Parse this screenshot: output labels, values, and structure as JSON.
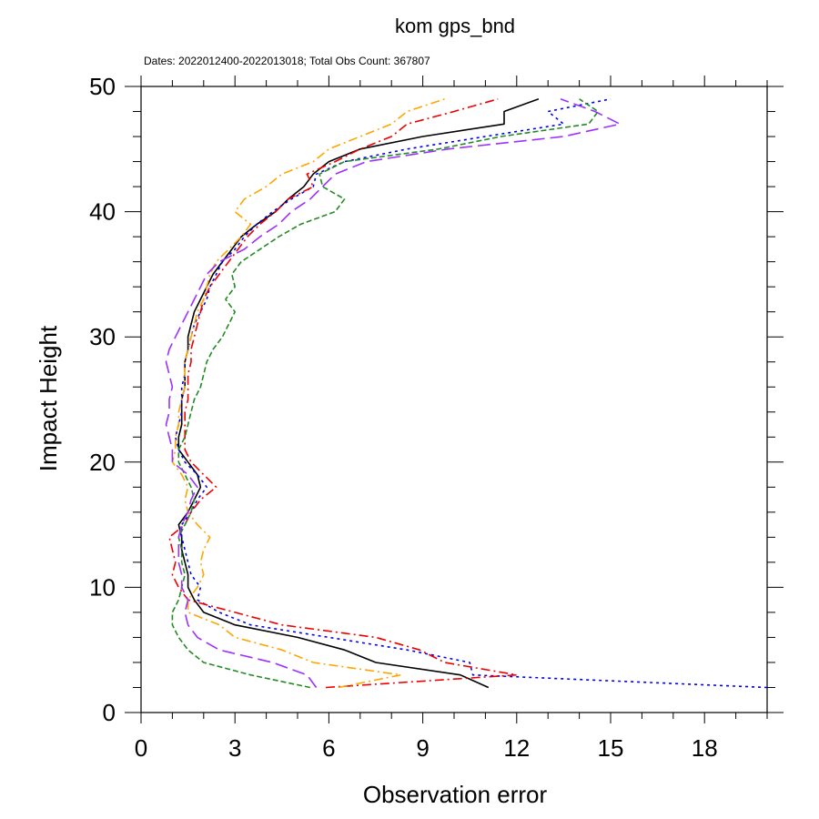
{
  "chart_data": {
    "type": "line",
    "title": "kom gps_bnd",
    "subtitle": "Dates: 2022012400-2022013018; Total Obs Count: 367807",
    "xlabel": "Observation error",
    "ylabel": "Impact Height",
    "xlim": [
      0,
      20
    ],
    "ylim": [
      0,
      50
    ],
    "xticks": [
      "0",
      "3",
      "6",
      "9",
      "12",
      "15",
      "18"
    ],
    "yticks": [
      "0",
      "10",
      "20",
      "30",
      "40",
      "50"
    ],
    "legend": "none",
    "series": [
      {
        "color": "#000000",
        "dash": "solid",
        "points": [
          [
            11.1,
            2
          ],
          [
            10.2,
            3
          ],
          [
            7.5,
            4
          ],
          [
            6.5,
            5
          ],
          [
            5.0,
            6
          ],
          [
            3.0,
            7
          ],
          [
            2.0,
            8
          ],
          [
            1.7,
            9
          ],
          [
            1.5,
            10
          ],
          [
            1.5,
            11
          ],
          [
            1.4,
            12
          ],
          [
            1.3,
            13
          ],
          [
            1.3,
            14
          ],
          [
            1.2,
            15
          ],
          [
            1.5,
            16
          ],
          [
            1.7,
            17
          ],
          [
            1.9,
            18
          ],
          [
            1.8,
            19
          ],
          [
            1.5,
            20
          ],
          [
            1.2,
            21
          ],
          [
            1.2,
            22
          ],
          [
            1.3,
            23
          ],
          [
            1.3,
            24
          ],
          [
            1.3,
            25
          ],
          [
            1.4,
            26
          ],
          [
            1.4,
            27
          ],
          [
            1.4,
            28
          ],
          [
            1.5,
            29
          ],
          [
            1.5,
            30
          ],
          [
            1.6,
            31
          ],
          [
            1.7,
            32
          ],
          [
            1.9,
            33
          ],
          [
            2.1,
            34
          ],
          [
            2.3,
            35
          ],
          [
            2.6,
            36
          ],
          [
            2.9,
            37
          ],
          [
            3.2,
            38
          ],
          [
            3.7,
            39
          ],
          [
            4.3,
            40
          ],
          [
            4.7,
            41
          ],
          [
            5.2,
            42
          ],
          [
            5.5,
            43
          ],
          [
            6.0,
            44
          ],
          [
            7.0,
            45
          ],
          [
            9.0,
            46
          ],
          [
            11.6,
            47
          ],
          [
            11.6,
            48
          ],
          [
            12.7,
            49
          ]
        ]
      },
      {
        "color": "#0000ee",
        "dash": "dotted",
        "points": [
          [
            20.0,
            2
          ],
          [
            10.6,
            3
          ],
          [
            10.5,
            4
          ],
          [
            8.5,
            5
          ],
          [
            6.0,
            6
          ],
          [
            3.5,
            7
          ],
          [
            2.5,
            8
          ],
          [
            1.8,
            9
          ],
          [
            1.9,
            10
          ],
          [
            1.6,
            11
          ],
          [
            1.5,
            12
          ],
          [
            1.4,
            13
          ],
          [
            1.3,
            14
          ],
          [
            1.3,
            15
          ],
          [
            1.6,
            16
          ],
          [
            1.8,
            17
          ],
          [
            2.1,
            18
          ],
          [
            1.8,
            19
          ],
          [
            1.4,
            20
          ],
          [
            1.2,
            21
          ],
          [
            1.1,
            22
          ],
          [
            1.2,
            23
          ],
          [
            1.3,
            24
          ],
          [
            1.3,
            25
          ],
          [
            1.3,
            26
          ],
          [
            1.4,
            27
          ],
          [
            1.4,
            28
          ],
          [
            1.5,
            29
          ],
          [
            1.6,
            30
          ],
          [
            1.7,
            31
          ],
          [
            1.9,
            32
          ],
          [
            2.1,
            33
          ],
          [
            2.2,
            34
          ],
          [
            2.4,
            35
          ],
          [
            2.6,
            36
          ],
          [
            3.0,
            37
          ],
          [
            3.3,
            38
          ],
          [
            3.7,
            39
          ],
          [
            4.2,
            40
          ],
          [
            4.8,
            41
          ],
          [
            5.5,
            42
          ],
          [
            5.6,
            43
          ],
          [
            6.5,
            44
          ],
          [
            8.5,
            45
          ],
          [
            11.0,
            46
          ],
          [
            13.5,
            47
          ],
          [
            13.0,
            48
          ],
          [
            15.0,
            49
          ]
        ]
      },
      {
        "color": "#ee0000",
        "dash": "dashdot",
        "points": [
          [
            5.9,
            2
          ],
          [
            12.0,
            3
          ],
          [
            9.7,
            4
          ],
          [
            8.9,
            5
          ],
          [
            7.5,
            6
          ],
          [
            4.5,
            7
          ],
          [
            3.0,
            8
          ],
          [
            1.5,
            9
          ],
          [
            1.2,
            10
          ],
          [
            1.0,
            11
          ],
          [
            1.1,
            12
          ],
          [
            1.0,
            13
          ],
          [
            0.9,
            14
          ],
          [
            1.4,
            15
          ],
          [
            1.6,
            16
          ],
          [
            1.9,
            17
          ],
          [
            2.4,
            18
          ],
          [
            2.0,
            19
          ],
          [
            1.6,
            20
          ],
          [
            1.4,
            21
          ],
          [
            1.4,
            22
          ],
          [
            1.4,
            23
          ],
          [
            1.4,
            24
          ],
          [
            1.5,
            25
          ],
          [
            1.5,
            26
          ],
          [
            1.5,
            27
          ],
          [
            1.6,
            28
          ],
          [
            1.6,
            29
          ],
          [
            1.7,
            30
          ],
          [
            1.8,
            31
          ],
          [
            1.9,
            32
          ],
          [
            2.0,
            33
          ],
          [
            2.2,
            34
          ],
          [
            2.5,
            35
          ],
          [
            2.8,
            36
          ],
          [
            3.1,
            37
          ],
          [
            3.4,
            38
          ],
          [
            3.8,
            39
          ],
          [
            4.3,
            40
          ],
          [
            4.7,
            41
          ],
          [
            5.5,
            42
          ],
          [
            5.3,
            43
          ],
          [
            6.2,
            44
          ],
          [
            7.0,
            45
          ],
          [
            8.0,
            46
          ],
          [
            8.5,
            47
          ],
          [
            10.0,
            48
          ],
          [
            11.4,
            49
          ]
        ]
      },
      {
        "color": "#228b22",
        "dash": "dashed",
        "points": [
          [
            5.4,
            2
          ],
          [
            3.5,
            3
          ],
          [
            2.0,
            4
          ],
          [
            1.5,
            5
          ],
          [
            1.2,
            6
          ],
          [
            1.0,
            7
          ],
          [
            1.0,
            8
          ],
          [
            1.2,
            9
          ],
          [
            1.3,
            10
          ],
          [
            1.4,
            11
          ],
          [
            1.3,
            12
          ],
          [
            1.3,
            13
          ],
          [
            1.2,
            14
          ],
          [
            1.4,
            15
          ],
          [
            1.6,
            16
          ],
          [
            1.7,
            17
          ],
          [
            1.6,
            18
          ],
          [
            1.4,
            19
          ],
          [
            1.2,
            20
          ],
          [
            1.2,
            21
          ],
          [
            1.4,
            22
          ],
          [
            1.5,
            23
          ],
          [
            1.6,
            24
          ],
          [
            1.7,
            25
          ],
          [
            1.9,
            26
          ],
          [
            2.0,
            27
          ],
          [
            2.1,
            28
          ],
          [
            2.3,
            29
          ],
          [
            2.6,
            30
          ],
          [
            2.8,
            31
          ],
          [
            3.0,
            32
          ],
          [
            2.7,
            33
          ],
          [
            3.0,
            34
          ],
          [
            2.9,
            35
          ],
          [
            3.2,
            36
          ],
          [
            3.8,
            37
          ],
          [
            4.4,
            38
          ],
          [
            5.1,
            39
          ],
          [
            6.2,
            40
          ],
          [
            6.5,
            41
          ],
          [
            5.8,
            42
          ],
          [
            5.7,
            43
          ],
          [
            6.5,
            44
          ],
          [
            9.5,
            45
          ],
          [
            11.5,
            46
          ],
          [
            14.3,
            47
          ],
          [
            14.6,
            48
          ],
          [
            14.0,
            49
          ]
        ]
      },
      {
        "color": "#ffa500",
        "dash": "dashdot",
        "points": [
          [
            6.3,
            2
          ],
          [
            8.3,
            3
          ],
          [
            5.5,
            4
          ],
          [
            4.5,
            5
          ],
          [
            3.0,
            6
          ],
          [
            2.5,
            7
          ],
          [
            1.5,
            8
          ],
          [
            1.5,
            9
          ],
          [
            1.8,
            10
          ],
          [
            2.0,
            11
          ],
          [
            1.9,
            12
          ],
          [
            2.0,
            13
          ],
          [
            2.2,
            14
          ],
          [
            1.8,
            15
          ],
          [
            1.5,
            16
          ],
          [
            1.4,
            17
          ],
          [
            1.5,
            18
          ],
          [
            1.3,
            19
          ],
          [
            1.0,
            20
          ],
          [
            1.1,
            21
          ],
          [
            1.1,
            22
          ],
          [
            1.2,
            23
          ],
          [
            1.2,
            24
          ],
          [
            1.3,
            25
          ],
          [
            1.4,
            26
          ],
          [
            1.4,
            27
          ],
          [
            1.4,
            28
          ],
          [
            1.5,
            29
          ],
          [
            1.6,
            30
          ],
          [
            1.7,
            31
          ],
          [
            1.8,
            32
          ],
          [
            2.0,
            33
          ],
          [
            2.1,
            34
          ],
          [
            2.2,
            35
          ],
          [
            2.4,
            36
          ],
          [
            2.8,
            37
          ],
          [
            3.2,
            38
          ],
          [
            3.5,
            39
          ],
          [
            3.0,
            40
          ],
          [
            3.3,
            41
          ],
          [
            4.0,
            42
          ],
          [
            4.5,
            43
          ],
          [
            5.5,
            44
          ],
          [
            6.0,
            45
          ],
          [
            7.0,
            46
          ],
          [
            8.0,
            47
          ],
          [
            8.5,
            48
          ],
          [
            9.7,
            49
          ]
        ]
      },
      {
        "color": "#9b30ff",
        "dash": "longdash",
        "points": [
          [
            5.6,
            2
          ],
          [
            5.3,
            3
          ],
          [
            4.2,
            4
          ],
          [
            2.5,
            5
          ],
          [
            1.8,
            6
          ],
          [
            1.5,
            7
          ],
          [
            1.4,
            8
          ],
          [
            1.5,
            9
          ],
          [
            1.3,
            10
          ],
          [
            1.3,
            11
          ],
          [
            1.2,
            12
          ],
          [
            1.2,
            13
          ],
          [
            1.2,
            14
          ],
          [
            1.3,
            15
          ],
          [
            1.5,
            16
          ],
          [
            1.6,
            17
          ],
          [
            1.8,
            18
          ],
          [
            1.5,
            19
          ],
          [
            1.0,
            20
          ],
          [
            1.0,
            21
          ],
          [
            0.9,
            22
          ],
          [
            0.8,
            23
          ],
          [
            0.9,
            24
          ],
          [
            0.9,
            25
          ],
          [
            1.0,
            26
          ],
          [
            0.9,
            27
          ],
          [
            0.8,
            28
          ],
          [
            0.9,
            29
          ],
          [
            1.1,
            30
          ],
          [
            1.3,
            31
          ],
          [
            1.5,
            32
          ],
          [
            1.7,
            33
          ],
          [
            1.9,
            34
          ],
          [
            2.1,
            35
          ],
          [
            2.5,
            36
          ],
          [
            3.3,
            37
          ],
          [
            3.8,
            38
          ],
          [
            4.4,
            39
          ],
          [
            4.8,
            40
          ],
          [
            5.4,
            41
          ],
          [
            5.8,
            42
          ],
          [
            6.2,
            43
          ],
          [
            7.2,
            44
          ],
          [
            9.8,
            45
          ],
          [
            13.5,
            46
          ],
          [
            15.3,
            47
          ],
          [
            14.5,
            48
          ],
          [
            13.4,
            49
          ]
        ]
      }
    ]
  }
}
